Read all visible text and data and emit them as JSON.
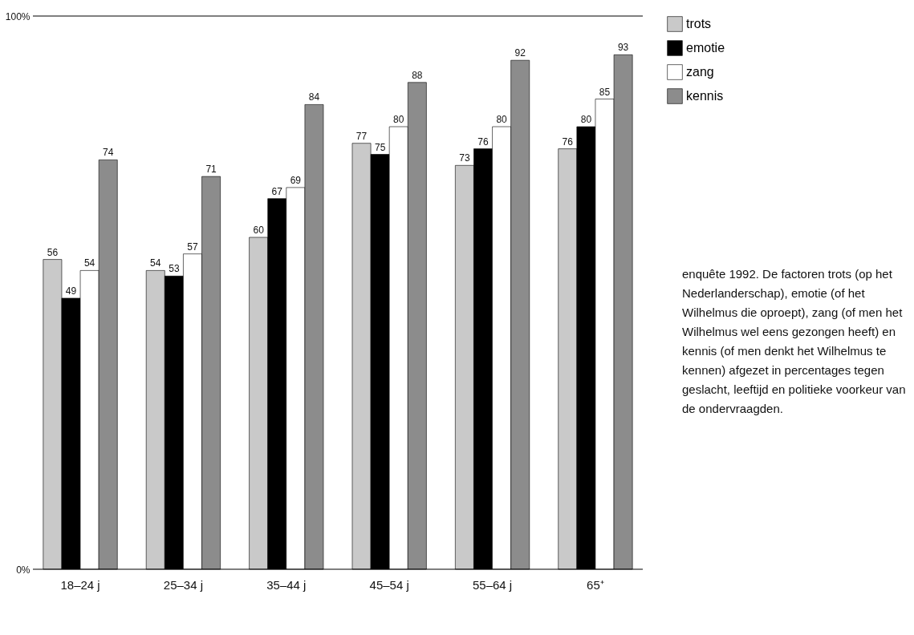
{
  "chart_data": {
    "type": "bar",
    "categories": [
      "18–24 j",
      "25–34 j",
      "35–44 j",
      "45–54 j",
      "55–64 j",
      "65⁺"
    ],
    "series": [
      {
        "name": "trots",
        "color": "#c9c9c9",
        "values": [
          56,
          54,
          60,
          77,
          73,
          76
        ]
      },
      {
        "name": "emotie",
        "color": "#000000",
        "values": [
          49,
          53,
          67,
          75,
          76,
          80
        ]
      },
      {
        "name": "zang",
        "color": "#ffffff",
        "values": [
          54,
          57,
          69,
          80,
          80,
          85
        ]
      },
      {
        "name": "kennis",
        "color": "#8c8c8c",
        "values": [
          74,
          71,
          84,
          88,
          92,
          93
        ]
      }
    ],
    "ylim": [
      0,
      100
    ],
    "yticks": [
      {
        "value": 0,
        "label": "0%"
      },
      {
        "value": 100,
        "label": "100%"
      }
    ],
    "legend": "top right",
    "data_labels": true,
    "annotations": [
      "enquête 1992. De factoren trots (op het Nederlanderschap), emotie (of het Wilhelmus die oproept), zang (of men het Wilhelmus wel eens gezongen heeft) en kennis (of men denkt het Wilhelmus te kennen) afgezet in percentages tegen geslacht, leeftijd en politieke voorkeur van de ondervraagden."
    ]
  }
}
